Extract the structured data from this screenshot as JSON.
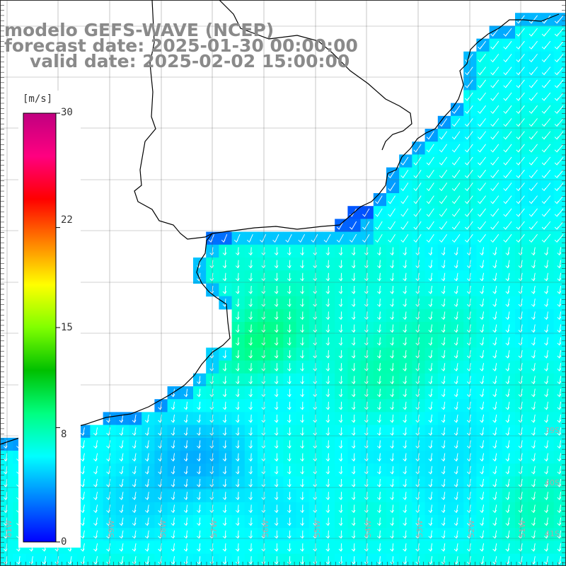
{
  "title": {
    "line1": "modelo GEFS-WAVE (NCEP)",
    "line2": "forecast date: 2025-01-30 00:00:00",
    "line3": "valid date: 2025-02-02 15:00:00"
  },
  "colorbar": {
    "unit": "[m/s]",
    "ticks": [
      "30",
      "22",
      "15",
      "8",
      "0"
    ],
    "tick_values": [
      30,
      22,
      15,
      8,
      0
    ],
    "min": 0,
    "max": 30,
    "colors": [
      "#0000ff",
      "#0080ff",
      "#00ffff",
      "#00ff80",
      "#00c000",
      "#80ff00",
      "#ffff00",
      "#ff8000",
      "#ff0000",
      "#ff0080",
      "#c00080"
    ]
  },
  "grid_labels": {
    "lat": [
      "39S",
      "40S",
      "41S"
    ],
    "lon": [
      "61W",
      "60W",
      "59W",
      "58W",
      "57W",
      "56W",
      "55W",
      "54W",
      "53W",
      "52W",
      "51W"
    ]
  },
  "map": {
    "land_color": "#ffffff",
    "coast_color": "#000000",
    "arrow_color": "#ffffff",
    "wind_direction": "from north (arrows pointing south / south-west)"
  }
}
